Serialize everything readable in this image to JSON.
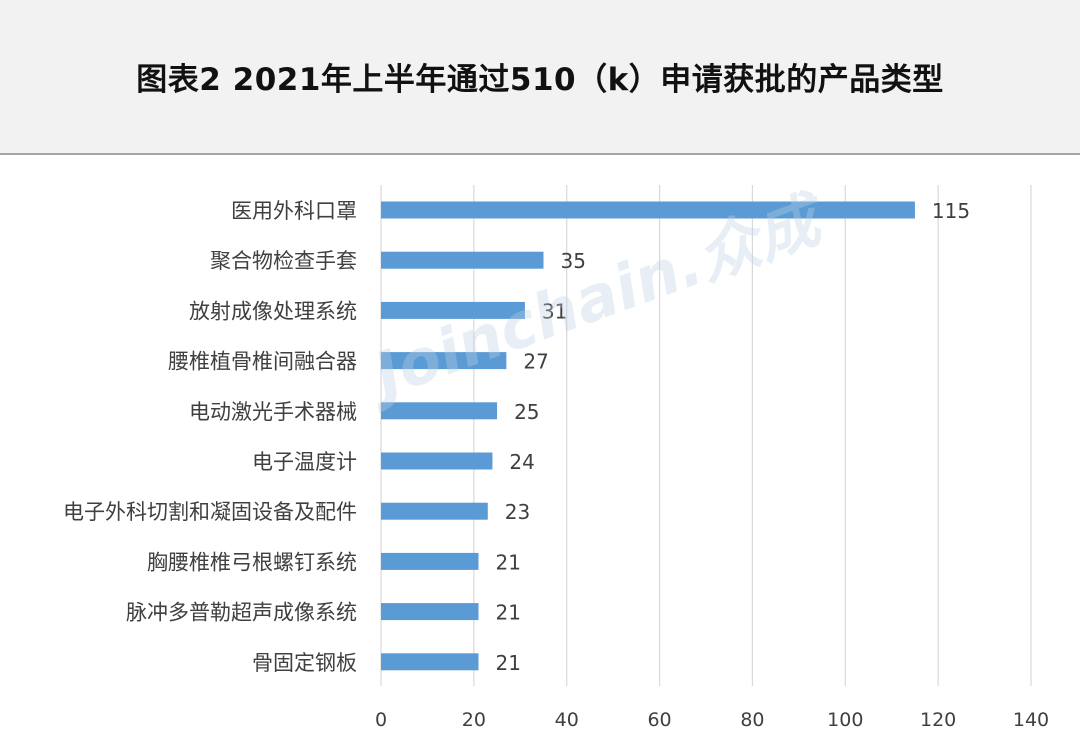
{
  "header": {
    "title": "图表2  2021年上半年通过510（k）申请获批的产品类型"
  },
  "watermark": {
    "text": "Joinchain.众成"
  },
  "colors": {
    "bar": "#5b9bd5",
    "grid": "#d9d9d9",
    "header_bg": "#f2f2f2",
    "text": "#404040"
  },
  "chart_data": {
    "type": "bar",
    "orientation": "horizontal",
    "categories": [
      "医用外科口罩",
      "聚合物检查手套",
      "放射成像处理系统",
      "腰椎植骨椎间融合器",
      "电动激光手术器械",
      "电子温度计",
      "电子外科切割和凝固设备及配件",
      "胸腰椎椎弓根螺钉系统",
      "脉冲多普勒超声成像系统",
      "骨固定钢板"
    ],
    "values": [
      115,
      35,
      31,
      27,
      25,
      24,
      23,
      21,
      21,
      21
    ],
    "xlim": [
      0,
      140
    ],
    "xticks": [
      0,
      20,
      40,
      60,
      80,
      100,
      120,
      140
    ],
    "grid": "vertical",
    "data_labels": true,
    "legend": "none"
  }
}
